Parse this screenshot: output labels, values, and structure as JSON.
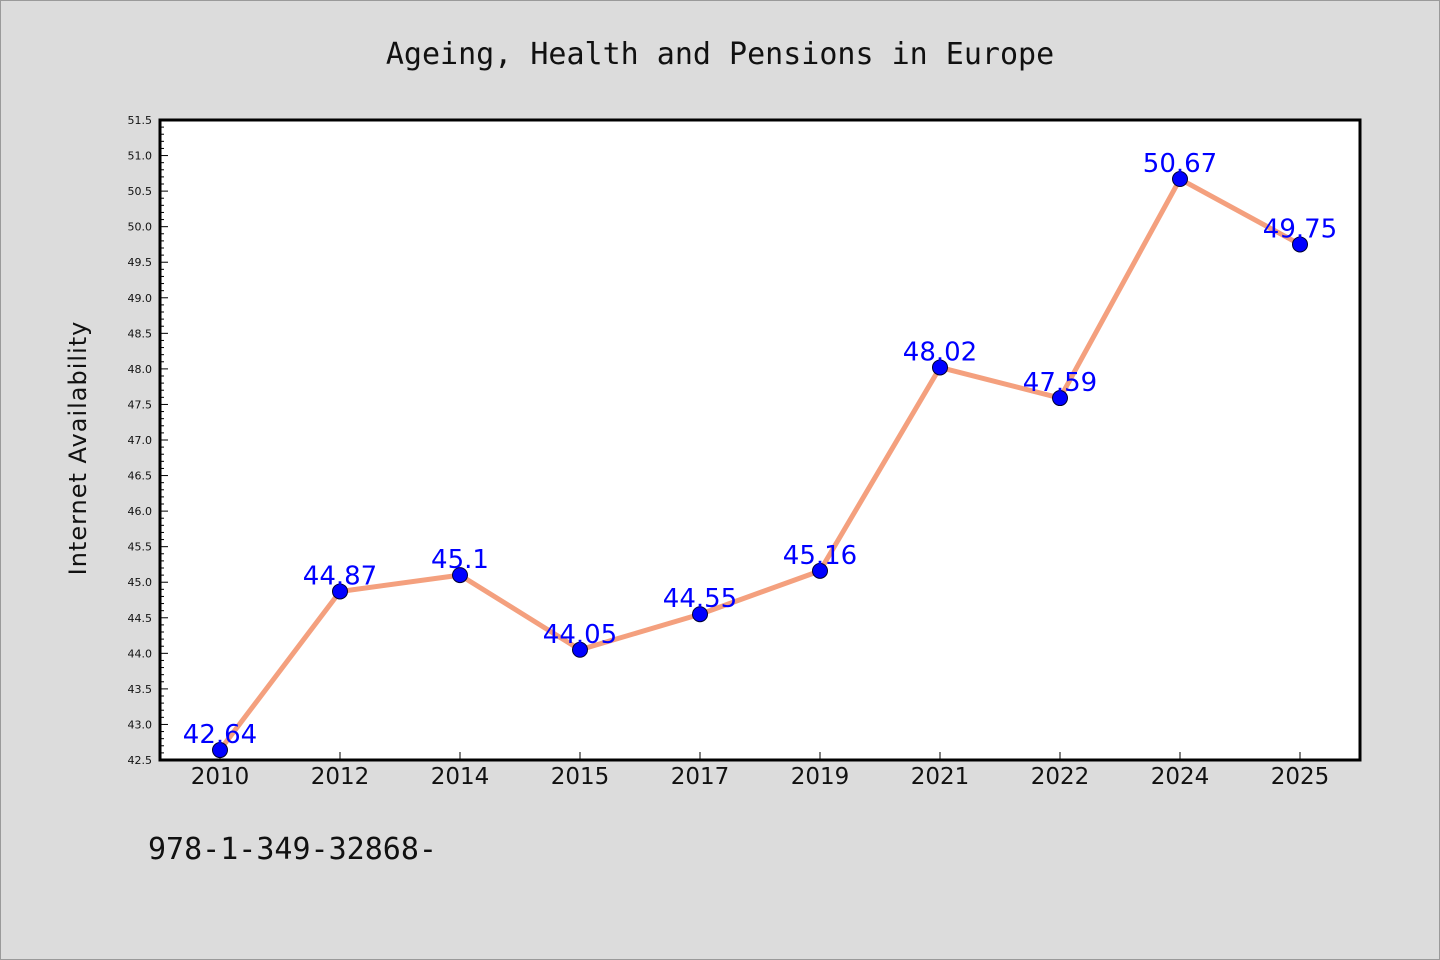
{
  "chart_data": {
    "type": "line",
    "title": "Ageing, Health and Pensions in Europe",
    "xlabel": "",
    "ylabel": "Internet Availability",
    "categories": [
      "2010",
      "2012",
      "2014",
      "2015",
      "2017",
      "2019",
      "2021",
      "2022",
      "2024",
      "2025"
    ],
    "values": [
      42.64,
      44.87,
      45.1,
      44.05,
      44.55,
      45.16,
      48.02,
      47.59,
      50.67,
      49.75
    ],
    "data_labels": [
      "42.64",
      "44.87",
      "45.1",
      "44.05",
      "44.55",
      "45.16",
      "48.02",
      "47.59",
      "50.67",
      "49.75"
    ],
    "ylim": [
      42.5,
      51.5
    ],
    "yticks": [
      "42.5",
      "43.0",
      "43.5",
      "44.0",
      "44.5",
      "45.0",
      "45.5",
      "46.0",
      "46.5",
      "47.0",
      "47.5",
      "48.0",
      "48.5",
      "49.0",
      "49.5",
      "50.0",
      "50.5",
      "51.0",
      "51.5"
    ],
    "grid": false,
    "legend": "none",
    "colors": {
      "line": "#f4a07e",
      "marker": "#0000ff",
      "data_label": "#0000ff",
      "plot_background": "#ffffff",
      "figure_background": "#dcdcdc"
    }
  },
  "footnote": "978-1-349-32868-"
}
